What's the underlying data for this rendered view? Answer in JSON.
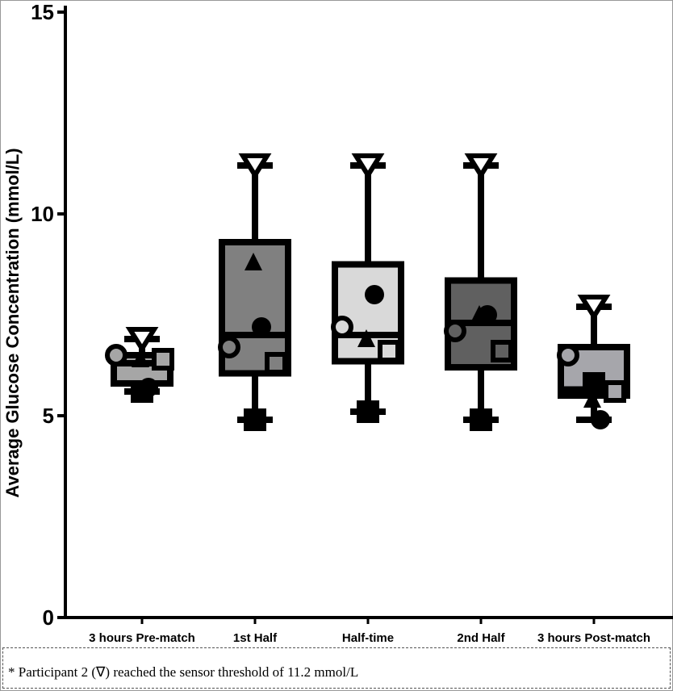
{
  "chart_data": {
    "type": "box",
    "title": "",
    "ylabel": "Average Glucose Concentration (mmol/L)",
    "xlabel": "",
    "ylim": [
      0,
      15
    ],
    "yticks": [
      0,
      5,
      10,
      15
    ],
    "grid": false,
    "categories": [
      "3 hours Pre-match",
      "1st Half",
      "Half-time",
      "2nd Half",
      "3 hours Post-match"
    ],
    "boxes": [
      {
        "min": 5.6,
        "q1": 5.8,
        "median": 6.3,
        "q3": 6.5,
        "max": 6.9,
        "fill": "#a6a6a6"
      },
      {
        "min": 4.9,
        "q1": 6.05,
        "median": 7.0,
        "q3": 9.3,
        "max": 11.2,
        "fill": "#808080"
      },
      {
        "min": 5.1,
        "q1": 6.35,
        "median": 7.0,
        "q3": 8.75,
        "max": 11.2,
        "fill": "#d9d9d9"
      },
      {
        "min": 4.9,
        "q1": 6.2,
        "median": 7.3,
        "q3": 8.35,
        "max": 11.2,
        "fill": "#606060"
      },
      {
        "min": 4.9,
        "q1": 5.5,
        "median": 5.65,
        "q3": 6.7,
        "max": 7.7,
        "fill": "#a6a6ab"
      }
    ],
    "participants": [
      {
        "marker": "inverted-triangle",
        "values": [
          6.9,
          11.2,
          11.2,
          11.2,
          7.7
        ]
      },
      {
        "marker": "open-circle",
        "values": [
          6.5,
          6.7,
          7.2,
          7.1,
          6.5
        ]
      },
      {
        "marker": "filled-triangle",
        "values": [
          6.4,
          8.8,
          6.9,
          7.5,
          5.4
        ]
      },
      {
        "marker": "open-square",
        "values": [
          6.4,
          6.3,
          6.6,
          6.6,
          5.6
        ]
      },
      {
        "marker": "filled-circle",
        "values": [
          5.7,
          7.2,
          8.0,
          7.5,
          4.9
        ]
      },
      {
        "marker": "filled-square",
        "values": [
          5.6,
          4.9,
          5.1,
          4.9,
          5.8
        ]
      }
    ]
  },
  "footnote": "* Participant 2 (∇) reached the sensor threshold of 11.2 mmol/L"
}
